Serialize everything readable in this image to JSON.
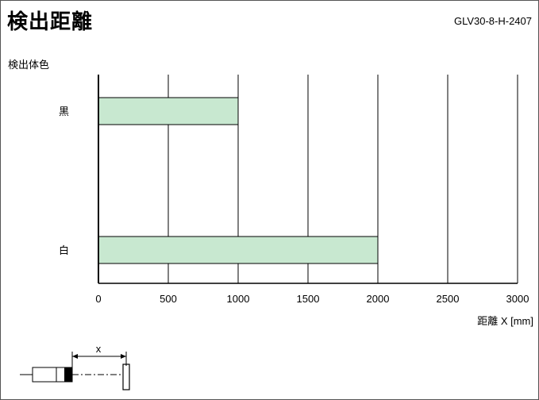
{
  "header": {
    "title": "検出距離",
    "model": "GLV30-8-H-2407"
  },
  "chart_data": {
    "type": "bar",
    "orientation": "horizontal",
    "title": "検出距離",
    "ylabel": "検出体色",
    "xlabel": "距離 X [mm]",
    "categories": [
      "黒",
      "白"
    ],
    "values": [
      1000,
      2000
    ],
    "xlim": [
      0,
      3000
    ],
    "xticks": [
      "0",
      "500",
      "1000",
      "1500",
      "2000",
      "2500",
      "3000"
    ],
    "grid": "vertical",
    "bar_color": "#c8e8d0"
  },
  "diagram": {
    "label": "x"
  }
}
